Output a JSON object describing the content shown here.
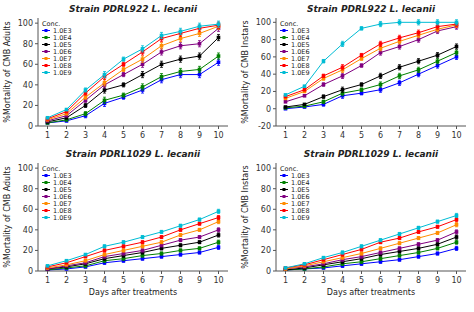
{
  "chart_data": [
    {
      "type": "line",
      "title": "Strain PDRL922 L. lecanii",
      "y_label": "%Mortality of CMB Adults",
      "x": [
        1,
        2,
        3,
        4,
        5,
        6,
        7,
        8,
        9,
        10
      ],
      "xlim": [
        0.5,
        10.5
      ],
      "xticks": [
        1,
        2,
        3,
        4,
        5,
        6,
        7,
        8,
        9,
        10
      ],
      "ylim": [
        0,
        105
      ],
      "yticks": [
        0,
        20,
        40,
        60,
        80,
        100
      ],
      "grid": false,
      "legend": "upper left",
      "legend_title": "Conc.",
      "marker": "square",
      "series": [
        {
          "name": "1.0E3",
          "color": "#0000ff",
          "values": [
            3,
            5,
            10,
            22,
            28,
            35,
            45,
            50,
            50,
            62
          ],
          "errors": [
            0.5,
            1,
            2,
            3,
            2,
            3,
            3,
            3,
            3,
            3
          ]
        },
        {
          "name": "1.0E4",
          "color": "#008000",
          "values": [
            3,
            6,
            12,
            25,
            30,
            38,
            48,
            53,
            55,
            68
          ],
          "errors": [
            0.5,
            1,
            2,
            3,
            2,
            3,
            3,
            3,
            3,
            3
          ]
        },
        {
          "name": "1.0E5",
          "color": "#000000",
          "values": [
            4,
            8,
            20,
            35,
            40,
            50,
            60,
            65,
            68,
            86
          ],
          "errors": [
            0.5,
            1,
            2,
            3,
            2,
            3,
            3,
            3,
            3,
            3
          ]
        },
        {
          "name": "1.0E6",
          "color": "#800080",
          "values": [
            5,
            10,
            25,
            40,
            50,
            60,
            72,
            78,
            80,
            95
          ],
          "errors": [
            0.5,
            1,
            2,
            3,
            2,
            3,
            3,
            3,
            3,
            3
          ]
        },
        {
          "name": "1.0E7",
          "color": "#ff8c00",
          "values": [
            6,
            12,
            28,
            42,
            55,
            65,
            78,
            85,
            90,
            97
          ],
          "errors": [
            0.5,
            1,
            2,
            3,
            2,
            3,
            3,
            3,
            3,
            3
          ]
        },
        {
          "name": "1.0E8",
          "color": "#ff0000",
          "values": [
            7,
            14,
            32,
            48,
            60,
            72,
            85,
            90,
            95,
            98
          ],
          "errors": [
            0.5,
            1,
            2,
            3,
            2,
            3,
            3,
            3,
            3,
            3
          ]
        },
        {
          "name": "1.0E9",
          "color": "#00bcd4",
          "values": [
            8,
            16,
            35,
            50,
            65,
            75,
            88,
            92,
            97,
            99
          ],
          "errors": [
            0.5,
            1,
            2,
            3,
            2,
            3,
            3,
            3,
            3,
            3
          ]
        }
      ]
    },
    {
      "type": "line",
      "title": "Strain PDRL922 L. lecanii",
      "y_label": "%Mortality of CMB Instars",
      "x": [
        1,
        2,
        3,
        4,
        5,
        6,
        7,
        8,
        9,
        10
      ],
      "xlim": [
        0.5,
        10.5
      ],
      "xticks": [
        1,
        2,
        3,
        4,
        5,
        6,
        7,
        8,
        9,
        10
      ],
      "ylim": [
        -20,
        105
      ],
      "yticks": [
        -20,
        0,
        20,
        40,
        60,
        80,
        100
      ],
      "grid": false,
      "legend": "upper left",
      "legend_title": "Conc.",
      "marker": "square",
      "series": [
        {
          "name": "1.0E3",
          "color": "#0000ff",
          "values": [
            0,
            2,
            5,
            15,
            18,
            22,
            30,
            40,
            50,
            60
          ],
          "errors": [
            0.5,
            1,
            2,
            3,
            2,
            3,
            3,
            3,
            3,
            3
          ]
        },
        {
          "name": "1.0E4",
          "color": "#008000",
          "values": [
            1,
            3,
            8,
            18,
            22,
            28,
            38,
            45,
            55,
            65
          ],
          "errors": [
            0.5,
            1,
            2,
            3,
            2,
            3,
            3,
            3,
            3,
            3
          ]
        },
        {
          "name": "1.0E5",
          "color": "#000000",
          "values": [
            2,
            5,
            14,
            22,
            28,
            38,
            48,
            55,
            62,
            72
          ],
          "errors": [
            0.5,
            1,
            2,
            3,
            2,
            3,
            3,
            3,
            3,
            3
          ]
        },
        {
          "name": "1.0E6",
          "color": "#800080",
          "values": [
            8,
            15,
            28,
            38,
            50,
            65,
            72,
            80,
            90,
            95
          ],
          "errors": [
            0.5,
            1,
            2,
            3,
            2,
            3,
            3,
            3,
            3,
            3
          ]
        },
        {
          "name": "1.0E7",
          "color": "#ff8c00",
          "values": [
            12,
            20,
            35,
            45,
            58,
            70,
            78,
            85,
            92,
            97
          ],
          "errors": [
            0.5,
            1,
            2,
            3,
            2,
            3,
            3,
            3,
            3,
            3
          ]
        },
        {
          "name": "1.0E8",
          "color": "#ff0000",
          "values": [
            14,
            22,
            38,
            48,
            62,
            75,
            82,
            88,
            95,
            98
          ],
          "errors": [
            0.5,
            1,
            2,
            3,
            2,
            3,
            3,
            3,
            3,
            3
          ]
        },
        {
          "name": "1.0E9",
          "color": "#00bcd4",
          "values": [
            16,
            26,
            55,
            75,
            93,
            98,
            100,
            100,
            100,
            100
          ],
          "errors": [
            0.5,
            1,
            2,
            3,
            2,
            3,
            3,
            3,
            3,
            3
          ]
        }
      ]
    },
    {
      "type": "line",
      "title": "Strain PDRL1029 L. lecanii",
      "y_label": "%Mortality of CMB Adults",
      "x_label": "Days after treatments",
      "x": [
        1,
        2,
        3,
        4,
        5,
        6,
        7,
        8,
        9,
        10
      ],
      "xlim": [
        0.5,
        10.5
      ],
      "xticks": [
        1,
        2,
        3,
        4,
        5,
        6,
        7,
        8,
        9,
        10
      ],
      "ylim": [
        0,
        105
      ],
      "yticks": [
        0,
        20,
        40,
        60,
        80,
        100
      ],
      "grid": false,
      "legend": "upper left",
      "legend_title": "Conc.",
      "marker": "square",
      "series": [
        {
          "name": "1.0E3",
          "color": "#0000ff",
          "values": [
            1,
            2,
            4,
            8,
            10,
            12,
            14,
            16,
            18,
            23
          ],
          "errors": [
            0.3,
            0.5,
            1,
            1.5,
            1.5,
            1.5,
            1.5,
            1.5,
            1.5,
            2
          ]
        },
        {
          "name": "1.0E4",
          "color": "#008000",
          "values": [
            1,
            3,
            5,
            10,
            12,
            15,
            17,
            20,
            22,
            28
          ],
          "errors": [
            0.3,
            0.5,
            1,
            1.5,
            1.5,
            1.5,
            1.5,
            1.5,
            1.5,
            2
          ]
        },
        {
          "name": "1.0E5",
          "color": "#000000",
          "values": [
            2,
            4,
            7,
            12,
            15,
            18,
            22,
            25,
            28,
            35
          ],
          "errors": [
            0.3,
            0.5,
            1,
            1.5,
            1.5,
            1.5,
            1.5,
            1.5,
            1.5,
            2
          ]
        },
        {
          "name": "1.0E6",
          "color": "#800080",
          "values": [
            2,
            5,
            8,
            14,
            17,
            20,
            25,
            30,
            33,
            40
          ],
          "errors": [
            0.3,
            0.5,
            1,
            1.5,
            1.5,
            1.5,
            1.5,
            1.5,
            1.5,
            2
          ]
        },
        {
          "name": "1.0E7",
          "color": "#ff8c00",
          "values": [
            3,
            6,
            10,
            16,
            20,
            24,
            28,
            35,
            40,
            48
          ],
          "errors": [
            0.3,
            0.5,
            1,
            1.5,
            1.5,
            1.5,
            1.5,
            1.5,
            1.5,
            2
          ]
        },
        {
          "name": "1.0E8",
          "color": "#ff0000",
          "values": [
            4,
            8,
            14,
            20,
            24,
            28,
            33,
            40,
            46,
            52
          ],
          "errors": [
            0.3,
            0.5,
            1,
            1.5,
            1.5,
            1.5,
            1.5,
            1.5,
            1.5,
            2
          ]
        },
        {
          "name": "1.0E9",
          "color": "#00bcd4",
          "values": [
            5,
            10,
            16,
            24,
            28,
            33,
            38,
            44,
            50,
            58
          ],
          "errors": [
            0.3,
            0.5,
            1,
            1.5,
            1.5,
            1.5,
            1.5,
            1.5,
            1.5,
            2
          ]
        }
      ]
    },
    {
      "type": "line",
      "title": "Strain PDRL1029 L. lecanii",
      "y_label": "%Mortality of CMB Instars",
      "x_label": "Days after treatments",
      "x": [
        1,
        2,
        3,
        4,
        5,
        6,
        7,
        8,
        9,
        10
      ],
      "xlim": [
        0.5,
        10.5
      ],
      "xticks": [
        1,
        2,
        3,
        4,
        5,
        6,
        7,
        8,
        9,
        10
      ],
      "ylim": [
        0,
        105
      ],
      "yticks": [
        0,
        20,
        40,
        60,
        80,
        100
      ],
      "grid": false,
      "legend": "upper left",
      "legend_title": "Conc.",
      "marker": "square",
      "series": [
        {
          "name": "1.0E3",
          "color": "#0000ff",
          "values": [
            1,
            2,
            3,
            5,
            7,
            9,
            11,
            14,
            17,
            22
          ],
          "errors": [
            0.3,
            0.5,
            1,
            1.5,
            1.5,
            1.5,
            1.5,
            1.5,
            1.5,
            2
          ]
        },
        {
          "name": "1.0E4",
          "color": "#008000",
          "values": [
            1,
            2,
            4,
            7,
            9,
            12,
            15,
            18,
            22,
            28
          ],
          "errors": [
            0.3,
            0.5,
            1,
            1.5,
            1.5,
            1.5,
            1.5,
            1.5,
            1.5,
            2
          ]
        },
        {
          "name": "1.0E5",
          "color": "#000000",
          "values": [
            1,
            3,
            6,
            9,
            12,
            16,
            19,
            22,
            26,
            33
          ],
          "errors": [
            0.3,
            0.5,
            1,
            1.5,
            1.5,
            1.5,
            1.5,
            1.5,
            1.5,
            2
          ]
        },
        {
          "name": "1.0E6",
          "color": "#800080",
          "values": [
            2,
            4,
            7,
            11,
            14,
            18,
            22,
            26,
            30,
            38
          ],
          "errors": [
            0.3,
            0.5,
            1,
            1.5,
            1.5,
            1.5,
            1.5,
            1.5,
            1.5,
            2
          ]
        },
        {
          "name": "1.0E7",
          "color": "#ff8c00",
          "values": [
            2,
            5,
            9,
            13,
            17,
            22,
            27,
            32,
            37,
            45
          ],
          "errors": [
            0.3,
            0.5,
            1,
            1.5,
            1.5,
            1.5,
            1.5,
            1.5,
            1.5,
            2
          ]
        },
        {
          "name": "1.0E8",
          "color": "#ff0000",
          "values": [
            3,
            6,
            11,
            16,
            21,
            28,
            32,
            38,
            43,
            50
          ],
          "errors": [
            0.3,
            0.5,
            1,
            1.5,
            1.5,
            1.5,
            1.5,
            1.5,
            1.5,
            2
          ]
        },
        {
          "name": "1.0E9",
          "color": "#00bcd4",
          "values": [
            3,
            7,
            13,
            18,
            24,
            30,
            36,
            42,
            48,
            54
          ],
          "errors": [
            0.3,
            0.5,
            1,
            1.5,
            1.5,
            1.5,
            1.5,
            1.5,
            1.5,
            2
          ]
        }
      ]
    }
  ]
}
